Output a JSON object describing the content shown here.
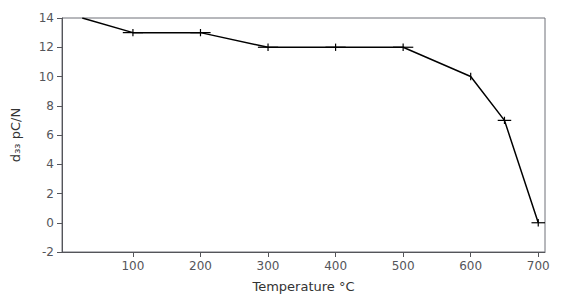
{
  "chart_data": {
    "type": "line",
    "x": [
      25,
      100,
      200,
      300,
      400,
      500,
      600,
      650,
      700
    ],
    "values": [
      14,
      13,
      13,
      12,
      12,
      12,
      10,
      7,
      0
    ],
    "xerr": [
      0,
      15,
      15,
      15,
      15,
      15,
      0,
      10,
      10
    ],
    "yerr": [
      0,
      0.25,
      0.25,
      0.25,
      0.25,
      0.25,
      0.25,
      0.25,
      0.25
    ],
    "xlabel": "Temperature °C",
    "ylabel": "d₃₃ pC/N",
    "xlim": [
      -5,
      710
    ],
    "ylim": [
      -2,
      14
    ],
    "xticks": [
      100,
      200,
      300,
      400,
      500,
      600,
      700
    ],
    "yticks": [
      -2,
      0,
      2,
      4,
      6,
      8,
      10,
      12,
      14
    ],
    "color": "#000000",
    "grid": false
  }
}
